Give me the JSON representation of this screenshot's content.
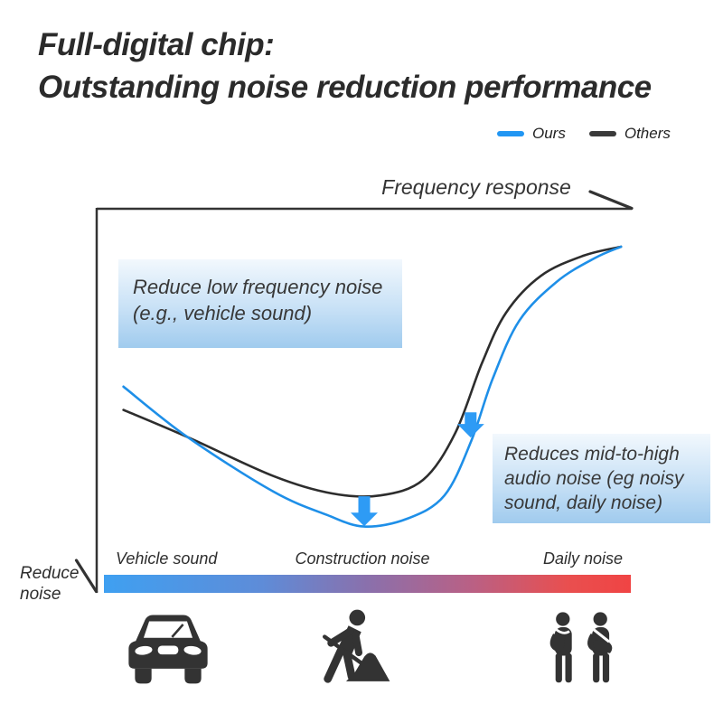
{
  "title": {
    "lines": [
      "Full-digital chip:",
      "Outstanding noise reduction performance"
    ]
  },
  "legend": {
    "items": [
      {
        "label": "Ours",
        "color": "#2196F3"
      },
      {
        "label": "Others",
        "color": "#3A3A3A"
      }
    ]
  },
  "axes": {
    "x_label": "Frequency response",
    "y_label_lines": [
      "Reduce",
      "noise"
    ]
  },
  "annotations": {
    "box1": {
      "lines": [
        "Reduce low frequency noise",
        "(e.g., vehicle sound)"
      ]
    },
    "box2": {
      "lines": [
        "Reduces mid-to-high",
        "audio noise (eg noisy",
        "sound, daily noise)"
      ]
    }
  },
  "spectrum": {
    "labels": [
      "Vehicle sound",
      "Construction noise",
      "Daily noise"
    ],
    "gradient_stops": [
      "#3FA0F1 0%",
      "#5E8CD8 30%",
      "#8A70AC 50%",
      "#BA6084 70%",
      "#E94F4F 88%",
      "#F04444 100%"
    ]
  },
  "icons": [
    {
      "name": "car-icon",
      "label": "Vehicle sound"
    },
    {
      "name": "construction-worker-icon",
      "label": "Construction noise"
    },
    {
      "name": "pedestrians-icon",
      "label": "Daily noise"
    }
  ],
  "colors": {
    "ours": "#1E8FE8",
    "others": "#2D2D2D",
    "arrow": "#2E9BF5",
    "box_gradient_top": "#F2F8FD",
    "box_gradient_mid": "#C8E1F6",
    "box_gradient_bottom": "#A0CBEE",
    "axis": "#333333",
    "title_text": "#2B2B2B"
  },
  "chart_data": {
    "type": "line",
    "title": "Frequency response",
    "xlabel": "Frequency response (axis arrow to the right, no numeric ticks)",
    "ylabel": "Reduce noise (axis arrow pointing down, no numeric ticks)",
    "grid": false,
    "legend_position": "top-right",
    "x_range": [
      0,
      1
    ],
    "y_range": [
      0,
      1
    ],
    "series": [
      {
        "name": "Ours",
        "color": "#1E8FE8",
        "x": [
          0.05,
          0.17,
          0.33,
          0.43,
          0.5,
          0.58,
          0.65,
          0.7,
          0.74,
          0.79,
          0.86,
          0.93,
          0.98
        ],
        "y": [
          0.54,
          0.41,
          0.27,
          0.21,
          0.18,
          0.2,
          0.26,
          0.4,
          0.56,
          0.71,
          0.81,
          0.87,
          0.9
        ]
      },
      {
        "name": "Others",
        "color": "#2D2D2D",
        "x": [
          0.05,
          0.17,
          0.33,
          0.44,
          0.53,
          0.61,
          0.67,
          0.72,
          0.765,
          0.83,
          0.91,
          0.98
        ],
        "y": [
          0.48,
          0.41,
          0.31,
          0.265,
          0.26,
          0.3,
          0.42,
          0.6,
          0.73,
          0.825,
          0.877,
          0.9
        ]
      }
    ],
    "arrows": [
      {
        "x": 0.5,
        "y_top": 0.258,
        "y_tip": 0.181
      },
      {
        "x": 0.699,
        "y_top": 0.474,
        "y_tip": 0.409
      }
    ],
    "spectrum_axis_labels": [
      "Vehicle sound",
      "Construction noise",
      "Daily noise"
    ]
  }
}
